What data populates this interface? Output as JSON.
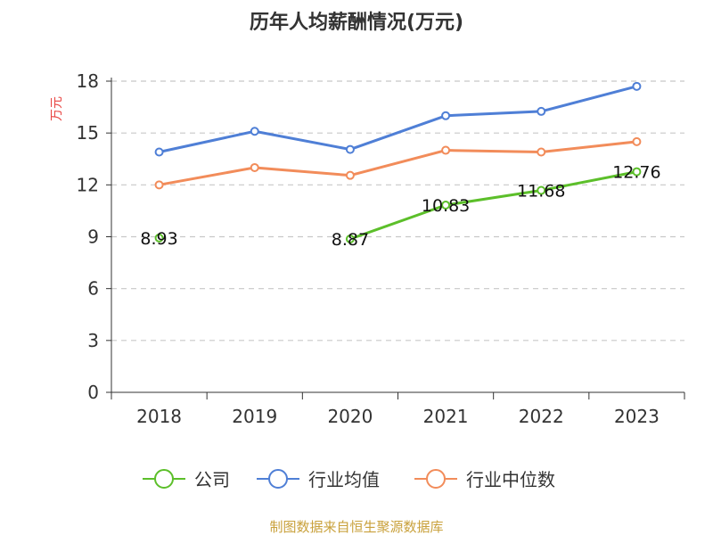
{
  "chart_data": {
    "type": "line",
    "title": "历年人均薪酬情况(万元)",
    "ylabel": "万元",
    "xlabel": "",
    "categories": [
      "2018",
      "2019",
      "2020",
      "2021",
      "2022",
      "2023"
    ],
    "ylim": [
      0,
      18
    ],
    "yticks": [
      0,
      3,
      6,
      9,
      12,
      15,
      18
    ],
    "grid": true,
    "legend_position": "bottom",
    "series": [
      {
        "name": "公司",
        "color": "#5cbf2a",
        "values": [
          8.93,
          null,
          8.87,
          10.83,
          11.68,
          12.76
        ],
        "labels": [
          "8.93",
          "",
          "8.87",
          "10.83",
          "11.68",
          "12.76"
        ]
      },
      {
        "name": "行业均值",
        "color": "#4f7fd6",
        "values": [
          13.9,
          15.1,
          14.05,
          16.0,
          16.25,
          17.7
        ]
      },
      {
        "name": "行业中位数",
        "color": "#f28c5a",
        "values": [
          12.0,
          13.0,
          12.55,
          14.0,
          13.9,
          14.5
        ]
      }
    ],
    "source": "制图数据来自恒生聚源数据库"
  }
}
